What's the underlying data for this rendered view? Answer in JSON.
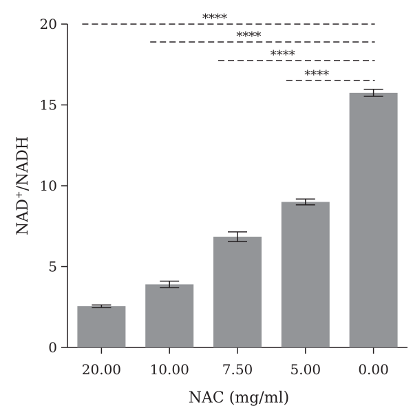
{
  "chart_data": {
    "type": "bar",
    "xlabel": "NAC (mg/ml)",
    "ylabel": {
      "base": "NAD",
      "superscript": "+",
      "rest": "/NADH"
    },
    "categories": [
      "20.00",
      "10.00",
      "7.50",
      "5.00",
      "0.00"
    ],
    "values": [
      2.55,
      3.9,
      6.85,
      9.0,
      15.75
    ],
    "errors": [
      0.08,
      0.2,
      0.3,
      0.18,
      0.22
    ],
    "ylim": [
      0,
      20
    ],
    "yticks": [
      0,
      5,
      10,
      15,
      20
    ],
    "ytick_labels": [
      "0",
      "5",
      "10",
      "15",
      "20"
    ],
    "grid": false,
    "colors": {
      "bar": "#939598",
      "axis": "#231f20"
    },
    "significance": [
      {
        "from": "20.00",
        "to": "0.00",
        "label": "****"
      },
      {
        "from": "10.00",
        "to": "0.00",
        "label": "****"
      },
      {
        "from": "7.50",
        "to": "0.00",
        "label": "****"
      },
      {
        "from": "5.00",
        "to": "0.00",
        "label": "****"
      }
    ]
  }
}
